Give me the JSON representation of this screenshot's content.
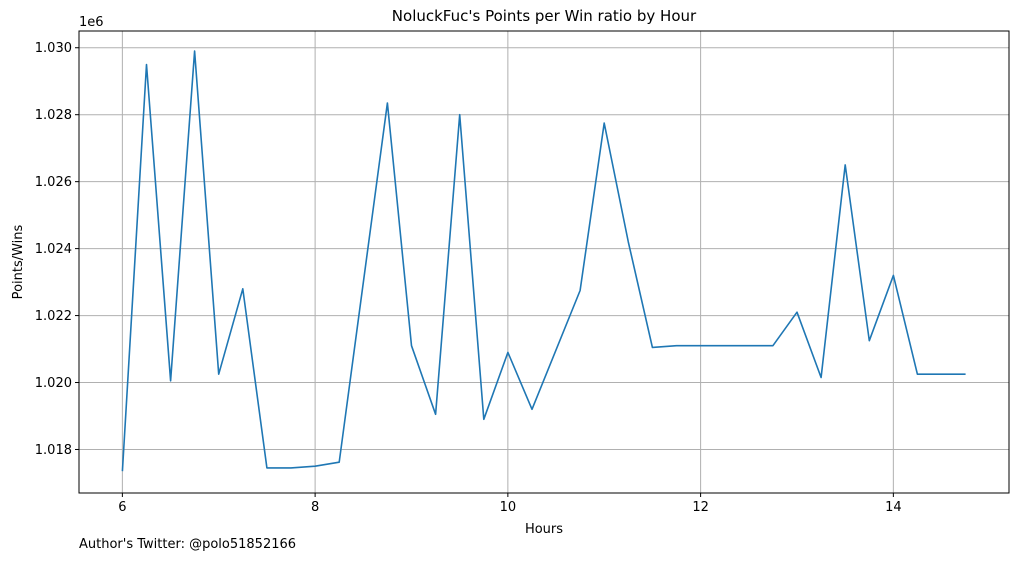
{
  "chart_data": {
    "type": "line",
    "title": "NoluckFuc's Points per Win ratio by Hour",
    "xlabel": "Hours",
    "ylabel": "Points/Wins",
    "y_offset_label": "1e6",
    "xlim": [
      5.55,
      15.2
    ],
    "ylim": [
      1016.7,
      1030.5
    ],
    "x_ticks": [
      6,
      8,
      10,
      12,
      14
    ],
    "y_ticks": [
      1018,
      1020,
      1022,
      1024,
      1026,
      1028,
      1030
    ],
    "y_tick_labels": [
      "1.018",
      "1.020",
      "1.022",
      "1.024",
      "1.026",
      "1.028",
      "1.030"
    ],
    "grid": true,
    "series": [
      {
        "color": "#1f77b4",
        "x": [
          6.0,
          6.25,
          6.5,
          6.75,
          7.0,
          7.25,
          7.5,
          7.75,
          8.0,
          8.25,
          8.75,
          9.0,
          9.25,
          9.5,
          9.75,
          10.0,
          10.25,
          10.75,
          11.0,
          11.25,
          11.5,
          11.75,
          12.0,
          12.25,
          12.5,
          12.75,
          13.0,
          13.25,
          13.5,
          13.75,
          14.0,
          14.25,
          14.5,
          14.75
        ],
        "y": [
          1017.35,
          1029.5,
          1020.05,
          1029.9,
          1020.25,
          1022.8,
          1017.45,
          1017.45,
          1017.5,
          1017.62,
          1028.35,
          1021.1,
          1019.05,
          1028.0,
          1018.9,
          1020.9,
          1019.2,
          1022.75,
          1027.75,
          1024.2,
          1021.05,
          1021.1,
          1021.1,
          1021.1,
          1021.1,
          1021.1,
          1022.1,
          1020.15,
          1026.5,
          1021.25,
          1023.2,
          1020.25,
          1020.25,
          1020.25
        ]
      }
    ]
  },
  "footer": {
    "author_text": "Author's Twitter: @polo51852166"
  }
}
